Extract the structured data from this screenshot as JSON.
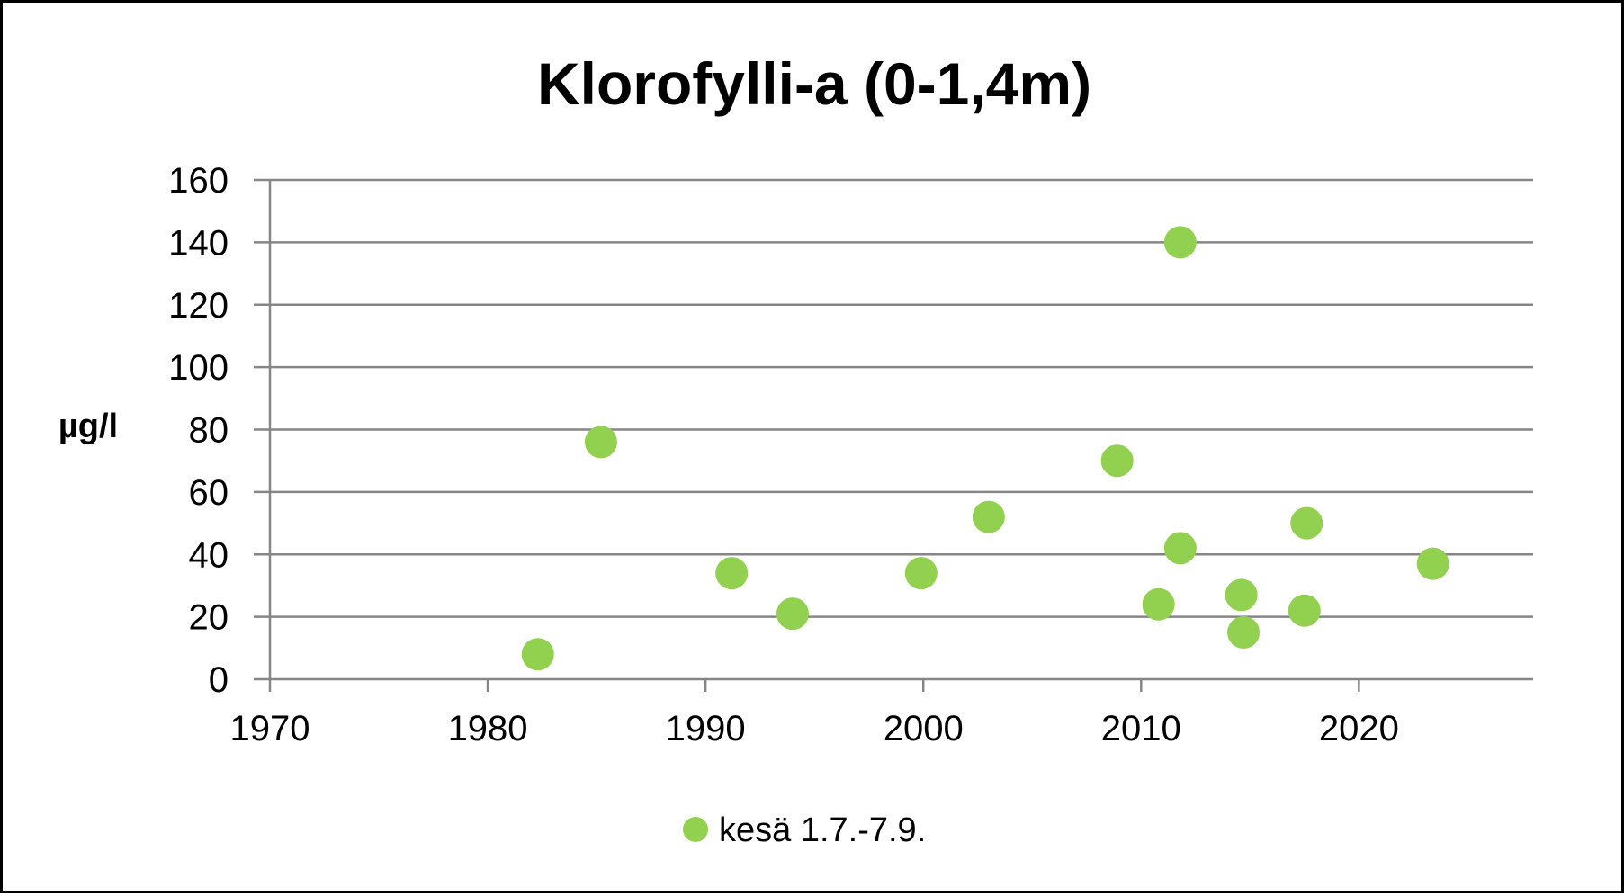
{
  "chart_data": {
    "type": "scatter",
    "title": "Klorofylli-a (0-1,4m)",
    "xlabel": "",
    "ylabel": "µg/l",
    "xlim": [
      1970,
      2028
    ],
    "ylim": [
      0,
      160
    ],
    "x_ticks": [
      1970,
      1980,
      1990,
      2000,
      2010,
      2020
    ],
    "y_ticks": [
      0,
      20,
      40,
      60,
      80,
      100,
      120,
      140,
      160
    ],
    "grid": "horizontal",
    "legend_position": "bottom",
    "series": [
      {
        "name": "kesä 1.7.-7.9.",
        "color": "#92d050",
        "points": [
          {
            "x": 1982.3,
            "y": 8
          },
          {
            "x": 1985.2,
            "y": 76
          },
          {
            "x": 1991.2,
            "y": 34
          },
          {
            "x": 1994.0,
            "y": 21
          },
          {
            "x": 1999.9,
            "y": 34
          },
          {
            "x": 2003.0,
            "y": 52
          },
          {
            "x": 2008.9,
            "y": 70
          },
          {
            "x": 2010.8,
            "y": 24
          },
          {
            "x": 2011.8,
            "y": 140
          },
          {
            "x": 2011.8,
            "y": 42
          },
          {
            "x": 2014.6,
            "y": 27
          },
          {
            "x": 2014.7,
            "y": 15
          },
          {
            "x": 2017.5,
            "y": 22
          },
          {
            "x": 2017.6,
            "y": 50
          },
          {
            "x": 2023.4,
            "y": 37
          }
        ]
      }
    ]
  }
}
